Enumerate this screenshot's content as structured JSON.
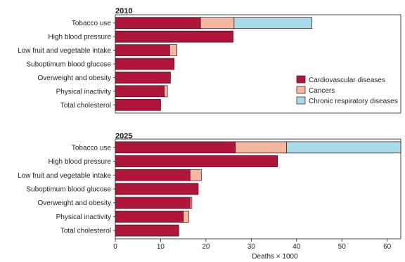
{
  "chart_data": {
    "type": "bar",
    "orientation": "horizontal",
    "stacked": true,
    "xlabel": "Deaths × 1000",
    "xlim": [
      0,
      63
    ],
    "xticks": [
      0,
      10,
      20,
      30,
      40,
      50,
      60
    ],
    "grid": false,
    "legend_position": "right",
    "colors": {
      "Cardiovascular diseases": "#b0163a",
      "Cancers": "#f5b9a2",
      "Chronic respiratory diseases": "#a8dbe8"
    },
    "legend": [
      "Cardiovascular diseases",
      "Cancers",
      "Chronic respiratory diseases"
    ],
    "categories": [
      "Tobacco use",
      "High blood pressure",
      "Low fruit and vegetable intake",
      "Suboptimum blood glucose",
      "Overweight and obesity",
      "Physical inactivity",
      "Total cholesterol"
    ],
    "panels": [
      {
        "title": "2010",
        "series": [
          {
            "name": "Cardiovascular diseases",
            "values": [
              18.8,
              26.0,
              12.0,
              13.0,
              12.0,
              10.8,
              10.0
            ]
          },
          {
            "name": "Cancers",
            "values": [
              7.4,
              0,
              1.6,
              0,
              0.2,
              0.7,
              0
            ]
          },
          {
            "name": "Chronic respiratory diseases",
            "values": [
              17.2,
              0,
              0,
              0,
              0,
              0,
              0
            ]
          }
        ]
      },
      {
        "title": "2025",
        "series": [
          {
            "name": "Cardiovascular diseases",
            "values": [
              26.5,
              35.8,
              16.5,
              18.3,
              16.5,
              15.0,
              14.0
            ]
          },
          {
            "name": "Cancers",
            "values": [
              11.3,
              0,
              2.5,
              0,
              0.4,
              1.2,
              0
            ]
          },
          {
            "name": "Chronic respiratory diseases",
            "values": [
              25.2,
              0,
              0,
              0,
              0,
              0,
              0
            ]
          }
        ]
      }
    ]
  }
}
